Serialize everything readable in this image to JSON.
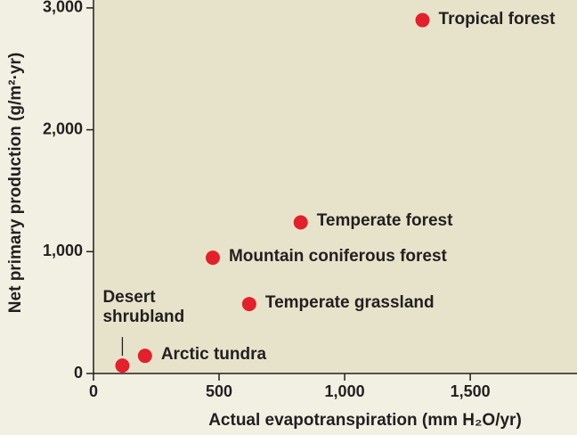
{
  "chart_data": {
    "type": "scatter",
    "x_label": "Actual evapotranspiration (mm H₂O/yr)",
    "y_label": "Net primary production (g/m²·yr)",
    "x": [
      1310,
      825,
      475,
      620,
      205,
      115
    ],
    "series": [
      {
        "color": "#e3202b",
        "values": [
          2900,
          1240,
          950,
          570,
          145,
          65
        ]
      }
    ],
    "point_labels": [
      "Tropical forest",
      "Temperate forest",
      "Mountain coniferous forest",
      "Temperate grassland",
      "Arctic tundra",
      "Desert shrubland"
    ],
    "xlim": [
      0,
      1925
    ],
    "ylim": [
      0,
      3065
    ],
    "xticks": [
      0,
      500,
      {
        "value": 1000,
        "label": "1,000"
      },
      {
        "value": 1500,
        "label": "1,500"
      }
    ],
    "yticks": [
      0,
      {
        "value": 1000,
        "label": "1,000"
      },
      {
        "value": 2000,
        "label": "2,000"
      },
      {
        "value": 3000,
        "label": "3,000"
      }
    ],
    "grid": false
  }
}
